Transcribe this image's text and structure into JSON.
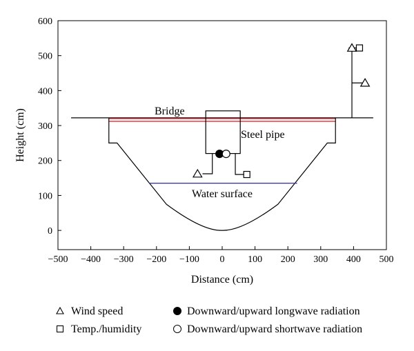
{
  "axes": {
    "xlabel": "Distance (cm)",
    "ylabel": "Height (cm)",
    "xlim": [
      -500,
      500
    ],
    "ylim": [
      -55,
      600
    ],
    "xticks": [
      -500,
      -400,
      -300,
      -200,
      -100,
      0,
      100,
      200,
      300,
      400,
      500
    ],
    "yticks": [
      0,
      100,
      200,
      300,
      400,
      500,
      600
    ],
    "xtick_labels": [
      "−500",
      "−400",
      "−300",
      "−200",
      "−100",
      "0",
      "100",
      "200",
      "300",
      "400",
      "500"
    ],
    "ytick_labels": [
      "0",
      "100",
      "200",
      "300",
      "400",
      "500",
      "600"
    ]
  },
  "annotations": {
    "bridge": "Bridge",
    "steel_pipe": "Steel pipe",
    "water_surface": "Water surface"
  },
  "legend": {
    "wind_speed": "Wind speed",
    "temp_humidity": "Temp./humidity",
    "longwave": "Downward/upward longwave radiation",
    "shortwave": "Downward/upward shortwave radiation"
  },
  "colors": {
    "bridge_line": "#e8262d",
    "water_line": "#3a3aa8",
    "ink": "#000000"
  },
  "geometry_data": {
    "ground_line_y": 322,
    "bridge_red_y": [
      320,
      312
    ],
    "water_y": 135,
    "water_x": [
      -222,
      228
    ],
    "channel_profile": [
      [
        -460,
        322
      ],
      [
        -345,
        322
      ],
      [
        -345,
        250
      ],
      [
        -320,
        250
      ],
      [
        -170,
        75
      ],
      [
        0,
        0
      ],
      [
        170,
        75
      ],
      [
        320,
        250
      ],
      [
        345,
        250
      ],
      [
        345,
        322
      ],
      [
        460,
        322
      ]
    ],
    "pipe_box": {
      "x0": -50,
      "x1": 55,
      "y_bottom": 220,
      "y_top": 342
    },
    "wind_markers": [
      [
        -75,
        162
      ],
      [
        395,
        522
      ],
      [
        435,
        422
      ]
    ],
    "temp_markers": [
      [
        75,
        160
      ],
      [
        418,
        522
      ]
    ],
    "longwave_marker": [
      -8,
      219
    ],
    "shortwave_marker": [
      12,
      219
    ]
  }
}
